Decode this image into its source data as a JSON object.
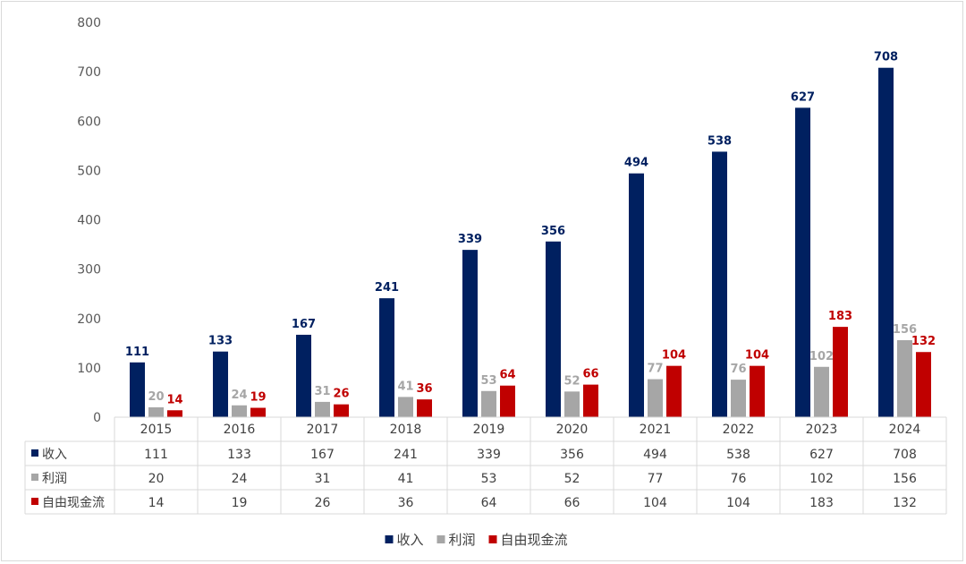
{
  "chart_data": {
    "type": "bar",
    "categories": [
      "2015",
      "2016",
      "2017",
      "2018",
      "2019",
      "2020",
      "2021",
      "2022",
      "2023",
      "2024"
    ],
    "series": [
      {
        "name": "收入",
        "color": "#002060",
        "values": [
          111,
          133,
          167,
          241,
          339,
          356,
          494,
          538,
          627,
          708
        ]
      },
      {
        "name": "利润",
        "color": "#a6a6a6",
        "values": [
          20,
          24,
          31,
          41,
          53,
          52,
          77,
          76,
          102,
          156
        ]
      },
      {
        "name": "自由现金流",
        "color": "#c00000",
        "values": [
          14,
          19,
          26,
          36,
          64,
          66,
          104,
          104,
          183,
          132
        ]
      }
    ],
    "ylim": [
      0,
      800
    ],
    "yticks": [
      0,
      100,
      200,
      300,
      400,
      500,
      600,
      700,
      800
    ],
    "data_table": true,
    "legend": "bottom",
    "grid": false
  }
}
